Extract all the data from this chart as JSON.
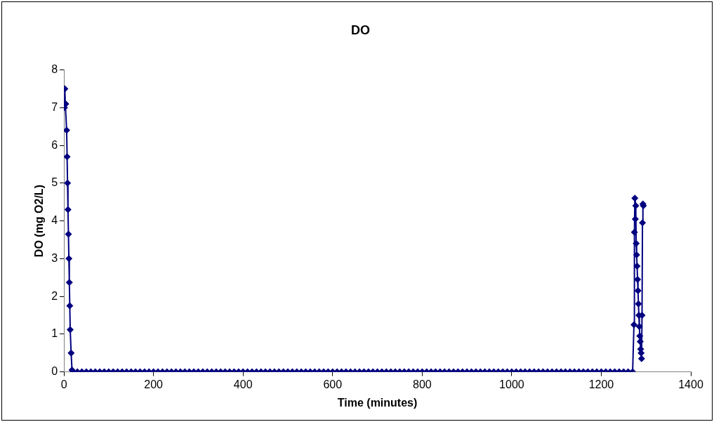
{
  "chart_data": {
    "type": "line",
    "title": "DO",
    "xlabel": "Time (minutes)",
    "ylabel": "DO (mg O2/L)",
    "marker": "diamond",
    "line_style": "solid",
    "legend": false,
    "grid": false,
    "xlim": [
      0,
      1400
    ],
    "xticks": [
      0,
      200,
      400,
      600,
      800,
      1000,
      1200,
      1400
    ],
    "ylim": [
      0,
      8
    ],
    "yticks": [
      0,
      1,
      2,
      3,
      4,
      5,
      6,
      7,
      8
    ],
    "series": [
      {
        "color": "#000080",
        "x": [
          1,
          2,
          3,
          4,
          6,
          7,
          8,
          9,
          10,
          11,
          12,
          13,
          14,
          16,
          18,
          20,
          30,
          40,
          50,
          60,
          70,
          80,
          90,
          100,
          110,
          120,
          130,
          140,
          150,
          160,
          170,
          180,
          190,
          200,
          210,
          220,
          230,
          240,
          250,
          260,
          270,
          280,
          290,
          300,
          310,
          320,
          330,
          340,
          350,
          360,
          370,
          380,
          390,
          400,
          410,
          420,
          430,
          440,
          450,
          460,
          470,
          480,
          490,
          500,
          510,
          520,
          530,
          540,
          550,
          560,
          570,
          580,
          590,
          600,
          610,
          620,
          630,
          640,
          650,
          660,
          670,
          680,
          690,
          700,
          710,
          720,
          730,
          740,
          750,
          760,
          770,
          780,
          790,
          800,
          810,
          820,
          830,
          840,
          850,
          860,
          870,
          880,
          890,
          900,
          910,
          920,
          930,
          940,
          950,
          960,
          970,
          980,
          990,
          1000,
          1010,
          1020,
          1030,
          1040,
          1050,
          1060,
          1070,
          1080,
          1090,
          1100,
          1110,
          1120,
          1130,
          1140,
          1150,
          1160,
          1170,
          1180,
          1190,
          1200,
          1210,
          1220,
          1230,
          1240,
          1250,
          1260,
          1270,
          1273,
          1274,
          1275,
          1276,
          1277,
          1278,
          1279,
          1280,
          1281,
          1282,
          1283,
          1284,
          1285,
          1286,
          1287,
          1288,
          1289,
          1290,
          1291,
          1292,
          1293,
          1294
        ],
        "values": [
          7.0,
          7.5,
          7.1,
          7.1,
          6.4,
          5.7,
          5.0,
          4.3,
          3.65,
          3.0,
          2.37,
          1.75,
          1.12,
          0.5,
          0.05,
          0,
          0,
          0,
          0,
          0,
          0,
          0,
          0,
          0,
          0,
          0,
          0,
          0,
          0,
          0,
          0,
          0,
          0,
          0,
          0,
          0,
          0,
          0,
          0,
          0,
          0,
          0,
          0,
          0,
          0,
          0,
          0,
          0,
          0,
          0,
          0,
          0,
          0,
          0,
          0,
          0,
          0,
          0,
          0,
          0,
          0,
          0,
          0,
          0,
          0,
          0,
          0,
          0,
          0,
          0,
          0,
          0,
          0,
          0,
          0,
          0,
          0,
          0,
          0,
          0,
          0,
          0,
          0,
          0,
          0,
          0,
          0,
          0,
          0,
          0,
          0,
          0,
          0,
          0,
          0,
          0,
          0,
          0,
          0,
          0,
          0,
          0,
          0,
          0,
          0,
          0,
          0,
          0,
          0,
          0,
          0,
          0,
          0,
          0,
          0,
          0,
          0,
          0,
          0,
          0,
          0,
          0,
          0,
          0,
          0,
          0,
          0,
          0,
          0,
          0,
          0,
          0,
          0,
          0,
          0,
          0,
          0,
          0,
          0,
          0,
          0,
          1.25,
          3.7,
          4.6,
          4.05,
          4.4,
          3.4,
          3.1,
          2.8,
          2.45,
          2.15,
          1.8,
          1.5,
          1.2,
          0.95,
          0.8,
          0.6,
          0.5,
          0.35,
          1.5,
          3.95,
          4.45,
          4.4
        ]
      }
    ]
  }
}
